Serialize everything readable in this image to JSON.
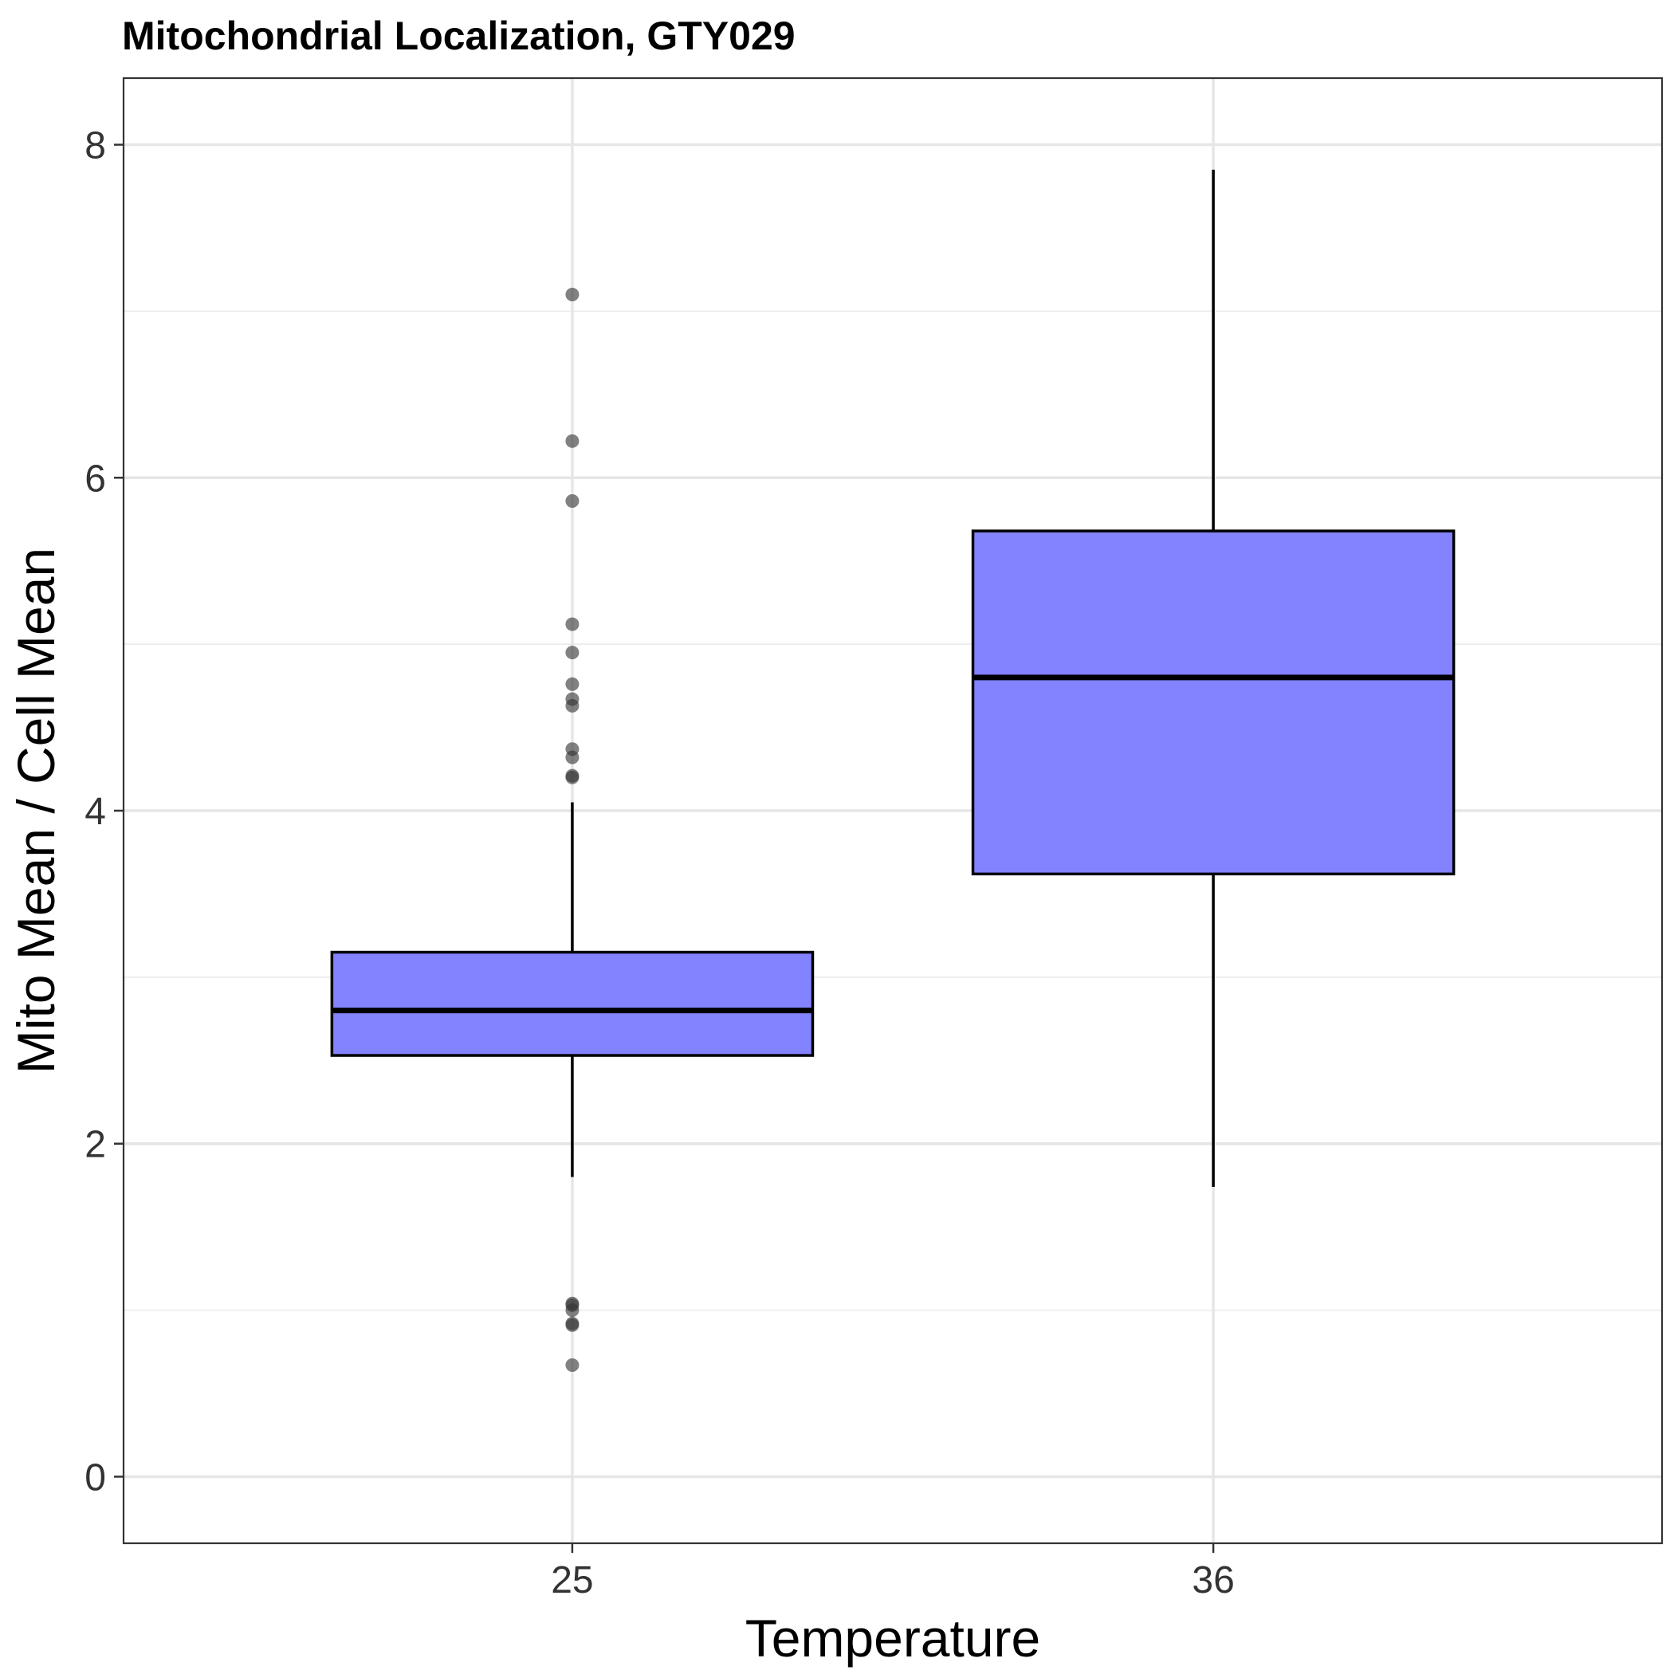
{
  "chart_data": {
    "type": "boxplot",
    "title": "Mitochondrial Localization, GTY029",
    "xlabel": "Temperature",
    "ylabel": "Mito Mean / Cell Mean",
    "categories": [
      "25",
      "36"
    ],
    "ylim": [
      -0.4,
      8.4
    ],
    "yticks": [
      0,
      2,
      4,
      6,
      8
    ],
    "grid": true,
    "fill_color": "#7f7fff",
    "box_line_color": "#000000",
    "point_color": "#333333",
    "boxes": [
      {
        "category": "25",
        "whisker_low": 1.8,
        "q1": 2.53,
        "median": 2.8,
        "q3": 3.15,
        "whisker_high": 4.05,
        "outliers": [
          7.1,
          6.22,
          5.86,
          5.12,
          4.95,
          4.76,
          4.67,
          4.63,
          4.37,
          4.32,
          4.21,
          4.2,
          1.04,
          1.03,
          1.0,
          0.92,
          0.91,
          0.67
        ]
      },
      {
        "category": "36",
        "whisker_low": 1.74,
        "q1": 3.62,
        "median": 4.8,
        "q3": 5.68,
        "whisker_high": 7.85,
        "outliers": []
      }
    ]
  }
}
